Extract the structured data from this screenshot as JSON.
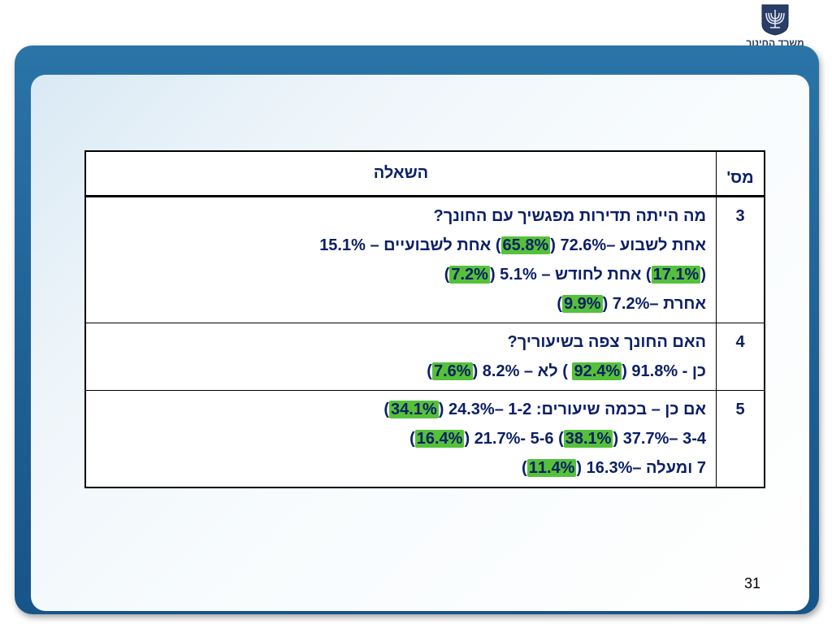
{
  "logo": {
    "text": "משרד החינוך",
    "icon": "menorah-emblem-icon"
  },
  "table": {
    "header": {
      "num": "מס'",
      "question": "השאלה"
    },
    "rows": [
      {
        "num": "3",
        "lines": [
          {
            "parts": [
              "מה הייתה תדירות מפגשיך עם החונך?"
            ]
          },
          {
            "parts": [
              "אחת לשבוע –72.6% (",
              "65.8%",
              ")  אחת לשבועיים – 15.1%"
            ]
          },
          {
            "parts": [
              "(",
              "17.1%",
              ") אחת לחודש – 5.1% (",
              "7.2%",
              ")"
            ]
          },
          {
            "parts": [
              "אחרת –7.2% (",
              "9.9%",
              ")"
            ]
          }
        ]
      },
      {
        "num": "4",
        "lines": [
          {
            "parts": [
              "האם החונך צפה בשיעוריך?"
            ]
          },
          {
            "parts": [
              "כן -   91.8% (",
              "92.4%",
              " )      לא – 8.2% (",
              "7.6%",
              ")"
            ]
          }
        ]
      },
      {
        "num": "5",
        "lines": [
          {
            "parts": [
              "אם כן – בכמה שיעורים: 1-2 –24.3% (",
              "34.1%",
              ")"
            ]
          },
          {
            "parts": [
              "3-4 –37.7% (",
              "38.1%",
              ") 5-6  -21.7% (",
              "16.4%",
              ")"
            ]
          },
          {
            "parts": [
              "7 ומעלה –16.3% (",
              "11.4%",
              ")"
            ]
          }
        ]
      }
    ]
  },
  "page_number": "31",
  "colors": {
    "frame": "#1d5f93",
    "highlight": "#55c13a",
    "text": "#0b1f66"
  }
}
